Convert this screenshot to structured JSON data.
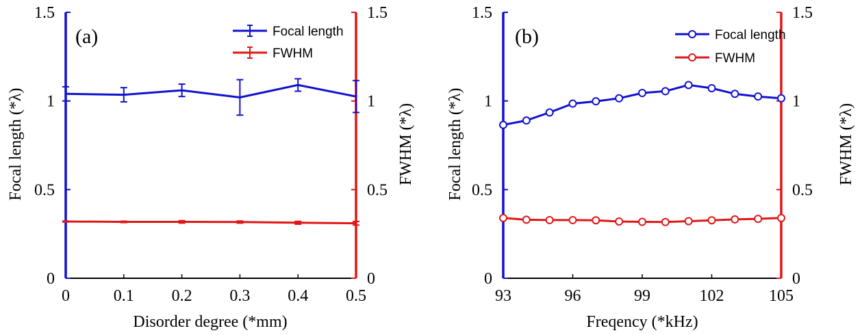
{
  "colors": {
    "blue": "#1010d0",
    "red": "#e01616",
    "axis": "#000000"
  },
  "chart_data": [
    {
      "type": "line",
      "panel_label": "(a)",
      "xlabel": "Disorder degree (*mm)",
      "ylabel_left": "Focal length (*λ)",
      "ylabel_right": "FWHM (*λ)",
      "xlim": [
        0,
        0.5
      ],
      "ylim_left": [
        0,
        1.5
      ],
      "ylim_right": [
        0,
        1.5
      ],
      "xticks": [
        "0",
        "0.1",
        "0.2",
        "0.3",
        "0.4",
        "0.5"
      ],
      "yticks_left": [
        "0",
        "0.5",
        "1",
        "1.5"
      ],
      "yticks_right": [
        "0",
        "0.5",
        "1",
        "1.5"
      ],
      "legend": {
        "position": "top-right",
        "marker": "errorbar"
      },
      "series": [
        {
          "name": "Focal length",
          "axis": "left",
          "color": "blue",
          "x": [
            0,
            0.1,
            0.2,
            0.3,
            0.4,
            0.5
          ],
          "y": [
            1.04,
            1.035,
            1.06,
            1.02,
            1.09,
            1.025
          ],
          "err": [
            0.04,
            0.04,
            0.035,
            0.1,
            0.035,
            0.09
          ]
        },
        {
          "name": "FWHM",
          "axis": "right",
          "color": "red",
          "x": [
            0,
            0.1,
            0.2,
            0.3,
            0.4,
            0.5
          ],
          "y": [
            0.32,
            0.318,
            0.318,
            0.317,
            0.313,
            0.31
          ],
          "err": [
            0.003,
            0.004,
            0.007,
            0.006,
            0.008,
            0.01
          ]
        }
      ]
    },
    {
      "type": "line",
      "panel_label": "(b)",
      "xlabel": "Freqency (*kHz)",
      "ylabel_left": "Focal length (*λ)",
      "ylabel_right": "FWHM (*λ)",
      "xlim": [
        93,
        105
      ],
      "ylim_left": [
        0,
        1.5
      ],
      "ylim_right": [
        0,
        1.5
      ],
      "xticks": [
        "93",
        "96",
        "99",
        "102",
        "105"
      ],
      "yticks_left": [
        "0",
        "0.5",
        "1",
        "1.5"
      ],
      "yticks_right": [
        "0",
        "0.5",
        "1",
        "1.5"
      ],
      "legend": {
        "position": "top-right",
        "marker": "circle"
      },
      "series": [
        {
          "name": "Focal length",
          "axis": "left",
          "color": "blue",
          "x": [
            93,
            94,
            95,
            96,
            97,
            98,
            99,
            100,
            101,
            102,
            103,
            104,
            105
          ],
          "y": [
            0.865,
            0.89,
            0.935,
            0.985,
            0.998,
            1.015,
            1.045,
            1.055,
            1.09,
            1.072,
            1.04,
            1.025,
            1.015
          ]
        },
        {
          "name": "FWHM",
          "axis": "right",
          "color": "red",
          "x": [
            93,
            94,
            95,
            96,
            97,
            98,
            99,
            100,
            101,
            102,
            103,
            104,
            105
          ],
          "y": [
            0.34,
            0.33,
            0.328,
            0.328,
            0.327,
            0.32,
            0.318,
            0.317,
            0.322,
            0.327,
            0.332,
            0.335,
            0.34
          ]
        }
      ]
    }
  ]
}
